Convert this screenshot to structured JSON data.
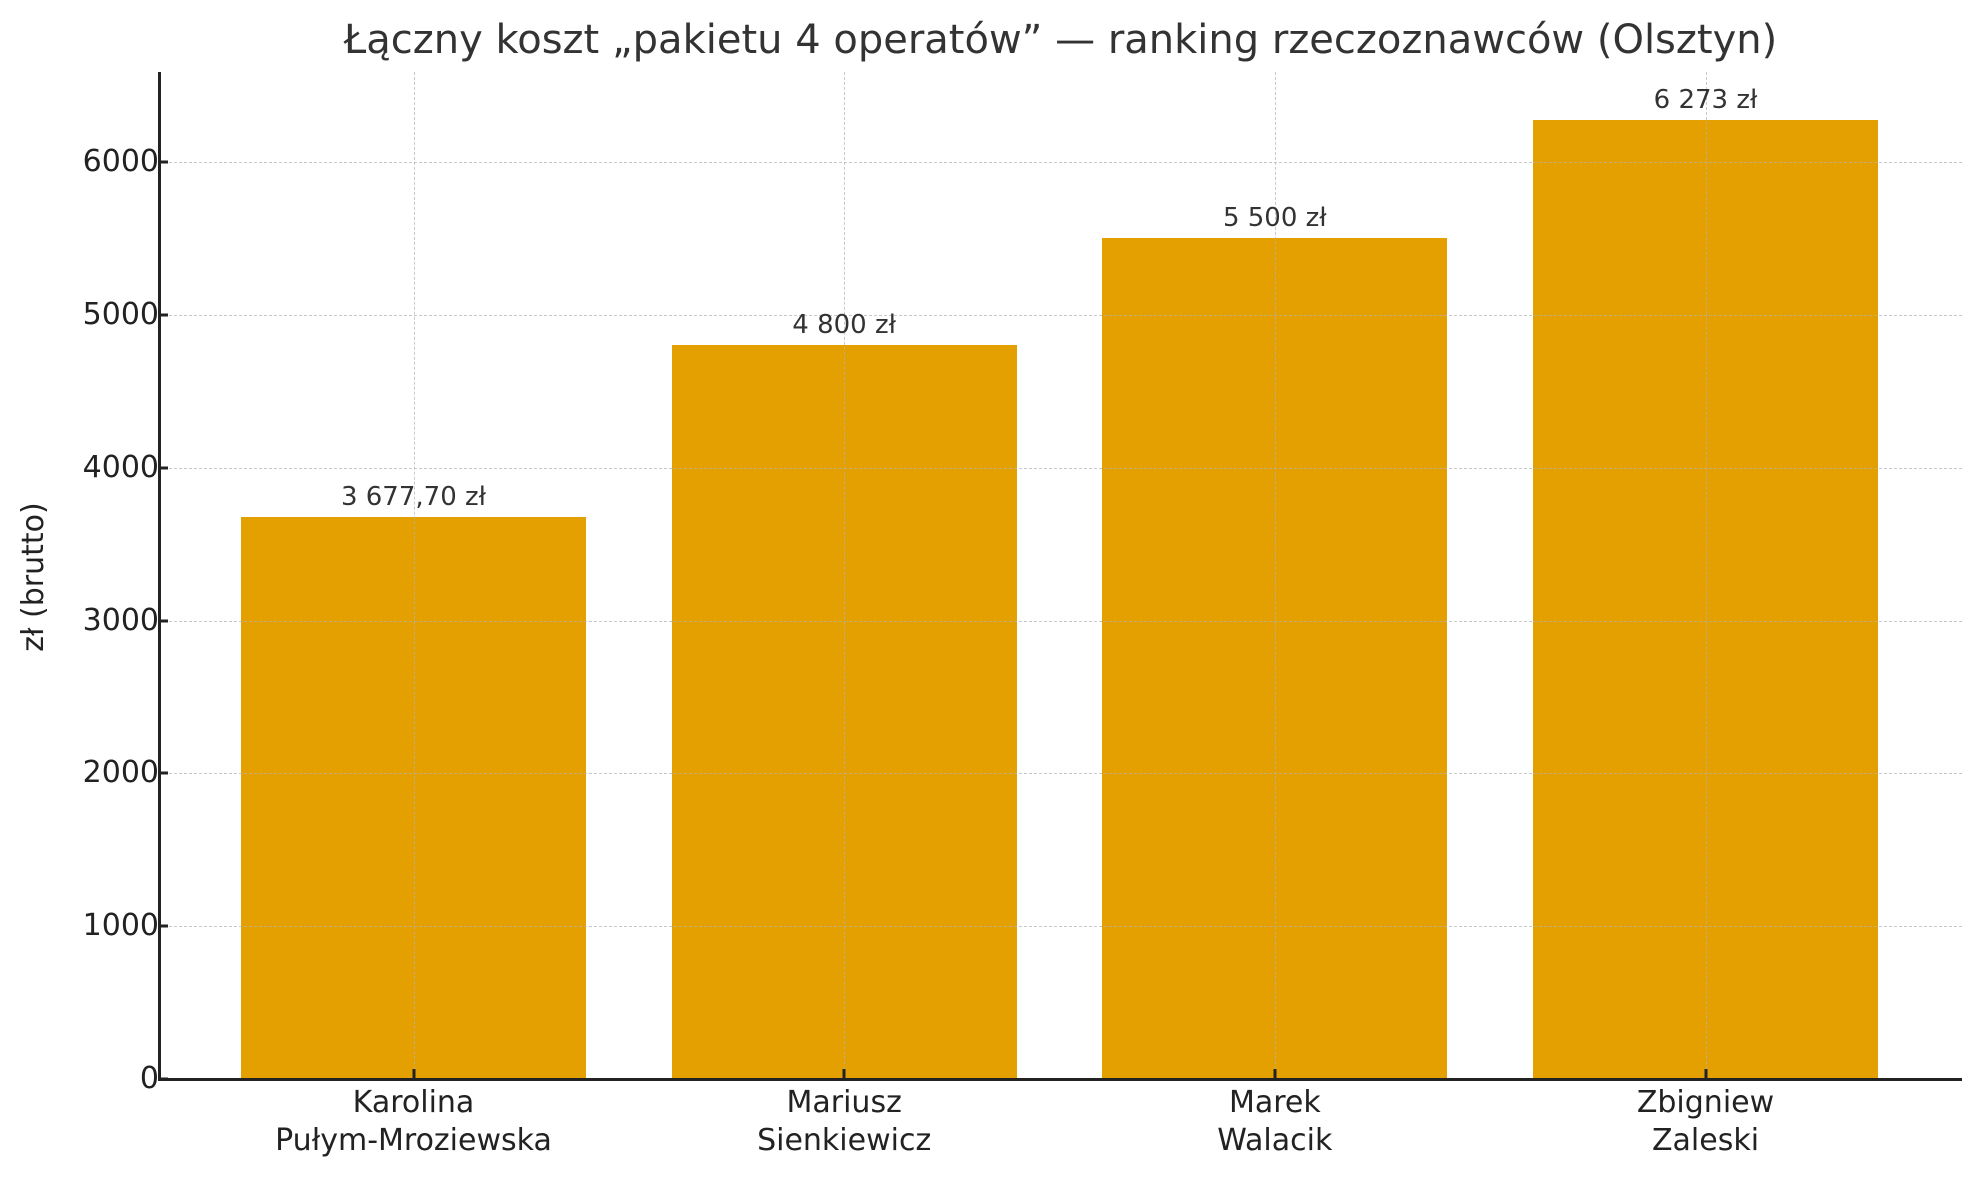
{
  "chart_data": {
    "type": "bar",
    "title": "Łączny koszt „pakietu 4 operatów” — ranking rzeczoznawców (Olsztyn)",
    "xlabel": "",
    "ylabel": "zł (brutto)",
    "categories": [
      [
        "Karolina",
        "Pułym-Mroziewska"
      ],
      [
        "Mariusz",
        "Sienkiewicz"
      ],
      [
        "Marek",
        "Walacik"
      ],
      [
        "Zbigniew",
        "Zaleski"
      ]
    ],
    "values": [
      3677.7,
      4800,
      5500,
      6273
    ],
    "value_labels": [
      "3 677,70 zł",
      "4 800 zł",
      "5 500 zł",
      "6 273 zł"
    ],
    "ylim": [
      0,
      6589
    ],
    "yticks": [
      0,
      1000,
      2000,
      3000,
      4000,
      5000,
      6000
    ],
    "ytick_labels": [
      "0",
      "1000",
      "2000",
      "3000",
      "4000",
      "5000",
      "6000"
    ],
    "grid": true,
    "grid_style": "dashed",
    "legend": null,
    "colors": {
      "bar": "#E3A000",
      "grid": "#B0B0B0",
      "axis": "#222222",
      "text": "#333333"
    }
  }
}
